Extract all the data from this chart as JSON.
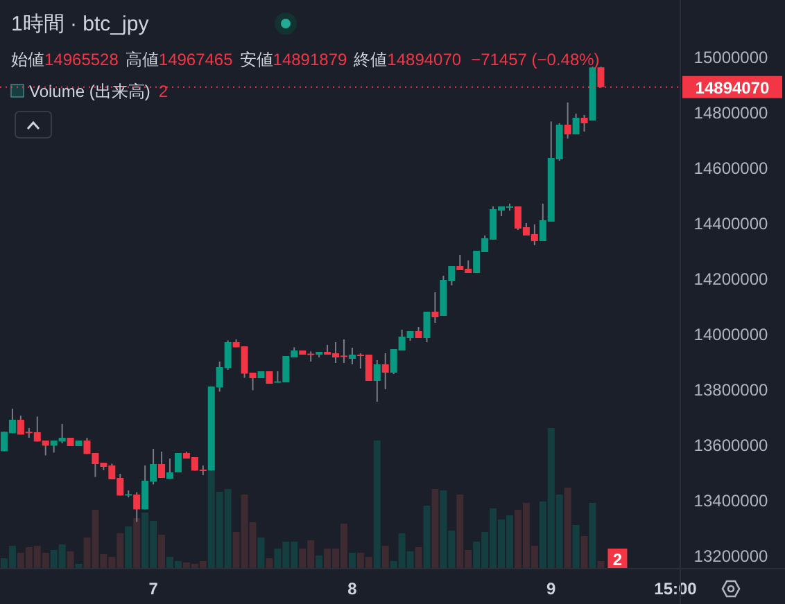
{
  "chart_data": {
    "type": "candlestick",
    "title": "1時間 · btc_jpy",
    "annotations": [
      "始値",
      "14965528",
      "高値",
      "14967465",
      "安値",
      "14891879",
      "終値",
      "14894070",
      "−71457 (−0.48%)"
    ],
    "categories": [
      null,
      null,
      null,
      null,
      null,
      null,
      null,
      null,
      null,
      null,
      null,
      null,
      null,
      null,
      null,
      null,
      null,
      null,
      "7",
      null,
      null,
      null,
      null,
      null,
      null,
      null,
      null,
      null,
      null,
      null,
      null,
      null,
      null,
      null,
      null,
      null,
      null,
      null,
      null,
      null,
      null,
      null,
      "8",
      null,
      null,
      null,
      null,
      null,
      null,
      null,
      null,
      null,
      null,
      null,
      null,
      null,
      null,
      null,
      null,
      null,
      null,
      null,
      null,
      null,
      null,
      null,
      "9",
      null,
      null,
      null,
      null,
      null,
      null,
      null,
      null,
      null,
      null,
      null,
      null,
      null,
      null,
      "15:00"
    ],
    "ohlc": [
      [
        13580000,
        13650000,
        13580000,
        13650000
      ],
      [
        13645000,
        13733500,
        13645000,
        13693500
      ],
      [
        13693500,
        13708500,
        13640000,
        13640000
      ],
      [
        13650000,
        13663500,
        13628500,
        13648500
      ],
      [
        13648500,
        13705000,
        13615000,
        13615000
      ],
      [
        13618500,
        13618500,
        13565000,
        13600000
      ],
      [
        13600000,
        13618500,
        13575000,
        13618500
      ],
      [
        13615000,
        13678500,
        13608500,
        13628500
      ],
      [
        13628500,
        13628500,
        13598500,
        13598500
      ],
      [
        13598500,
        13618500,
        13598500,
        13618500
      ],
      [
        13618500,
        13628500,
        13570000,
        13570000
      ],
      [
        13573500,
        13573500,
        13487000,
        13533500
      ],
      [
        13538500,
        13538500,
        13512000,
        13523500
      ],
      [
        13528500,
        13535000,
        13478500,
        13478500
      ],
      [
        13483500,
        13498500,
        13420000,
        13420000
      ],
      [
        13423500,
        13438500,
        13413500,
        13425000
      ],
      [
        13423500,
        13432000,
        13325000,
        13370000
      ],
      [
        13370000,
        13528500,
        13370000,
        13473500
      ],
      [
        13470000,
        13588500,
        13460000,
        13533500
      ],
      [
        13533500,
        13578500,
        13483500,
        13483500
      ],
      [
        13480000,
        13553500,
        13480000,
        13503500
      ],
      [
        13503500,
        13573500,
        13503500,
        13573500
      ],
      [
        13573500,
        13578500,
        13553500,
        13553500
      ],
      [
        13558500,
        13558500,
        13510000,
        13510000
      ],
      [
        13513500,
        13528500,
        13493500,
        13512000
      ],
      [
        13510000,
        13813500,
        13510000,
        13813500
      ],
      [
        13810000,
        13903500,
        13795000,
        13883500
      ],
      [
        13880000,
        13980000,
        13873500,
        13973500
      ],
      [
        13973500,
        13983500,
        13955000,
        13955000
      ],
      [
        13958500,
        13958500,
        13845000,
        13860000
      ],
      [
        13863500,
        13863500,
        13800000,
        13843500
      ],
      [
        13843500,
        13868500,
        13843500,
        13868500
      ],
      [
        13868500,
        13868500,
        13823500,
        13823500
      ],
      [
        13828500,
        13868500,
        13828500,
        13832000
      ],
      [
        13828500,
        13923500,
        13828500,
        13923500
      ],
      [
        13918500,
        13955000,
        13918500,
        13943500
      ],
      [
        13943500,
        13943500,
        13928500,
        13928500
      ],
      [
        13932000,
        13940000,
        13903500,
        13927000
      ],
      [
        13928500,
        13938500,
        13918500,
        13938500
      ],
      [
        13938500,
        13963500,
        13928500,
        13928500
      ],
      [
        13933500,
        13973500,
        13898500,
        13918500
      ],
      [
        13925000,
        13983500,
        13898500,
        13920000
      ],
      [
        13913500,
        13953500,
        13893500,
        13928500
      ],
      [
        13928500,
        13933500,
        13878500,
        13923500
      ],
      [
        13928500,
        13928500,
        13833500,
        13833500
      ],
      [
        13833500,
        13908500,
        13758500,
        13893500
      ],
      [
        13893500,
        13933500,
        13803500,
        13863500
      ],
      [
        13863500,
        13948500,
        13858500,
        13948500
      ],
      [
        13943500,
        14018500,
        13943500,
        13993500
      ],
      [
        13988500,
        14013500,
        13978500,
        14013500
      ],
      [
        14013500,
        14028500,
        13988500,
        13988500
      ],
      [
        13988500,
        14083500,
        13973500,
        14083500
      ],
      [
        14083500,
        14153500,
        14043500,
        14063500
      ],
      [
        14068500,
        14213500,
        14068500,
        14198500
      ],
      [
        14193500,
        14248500,
        14178500,
        14248500
      ],
      [
        14248500,
        14288500,
        14233500,
        14233500
      ],
      [
        14238500,
        14268500,
        14223500,
        14223500
      ],
      [
        14223500,
        14303500,
        14223500,
        14303500
      ],
      [
        14298500,
        14358500,
        14298500,
        14348500
      ],
      [
        14343500,
        14463500,
        14343500,
        14453500
      ],
      [
        14448500,
        14463500,
        14428500,
        14463500
      ],
      [
        14462000,
        14473500,
        14448500,
        14463500
      ],
      [
        14463500,
        14463500,
        14378500,
        14383500
      ],
      [
        14388500,
        14403500,
        14358500,
        14358500
      ],
      [
        14363500,
        14398500,
        14323500,
        14338500
      ],
      [
        14338500,
        14473500,
        14338500,
        14413500
      ],
      [
        14408500,
        14770000,
        14408500,
        14638500
      ],
      [
        14633500,
        14763500,
        14628500,
        14758500
      ],
      [
        14758500,
        14838500,
        14708500,
        14723500
      ],
      [
        14723500,
        14798500,
        14723500,
        14783500
      ],
      [
        14783500,
        14793500,
        14733500,
        14763500
      ],
      [
        14773500,
        14968000,
        14773500,
        14965000
      ],
      [
        14965528,
        14967465,
        14891879,
        14894070
      ],
      null,
      null,
      null,
      null,
      null,
      null,
      null,
      null,
      null
    ],
    "series": [
      {
        "type": "bar",
        "axis": "y2",
        "name": "Volume (出来高)",
        "values": [
          2.8,
          6.4,
          4.4,
          6,
          6.4,
          4.4,
          5.2,
          6.8,
          4.8,
          1.2,
          8.8,
          16.8,
          4,
          3.2,
          10,
          12,
          14.4,
          16,
          13.6,
          9.6,
          3.2,
          2,
          1.6,
          1.2,
          2,
          28,
          22,
          22.8,
          10.4,
          21.2,
          13.2,
          8.8,
          2.8,
          5.6,
          7.6,
          7.6,
          5.6,
          8,
          3.6,
          5.6,
          5.6,
          12.8,
          4.4,
          4.4,
          3.2,
          36.8,
          6.4,
          2,
          10,
          4.8,
          6,
          18,
          22.8,
          22.4,
          10.8,
          21.2,
          5.2,
          7.6,
          10.4,
          17.2,
          14,
          15.2,
          16.8,
          18.8,
          6.4,
          19.2,
          40.4,
          21.2,
          23.2,
          12.4,
          9.2,
          18.8,
          2,
          null,
          null,
          null,
          null,
          null,
          null,
          null,
          null,
          null
        ],
        "value_labels": [
          null,
          null,
          null,
          null,
          null,
          null,
          null,
          null,
          null,
          null,
          null,
          null,
          null,
          null,
          null,
          null,
          null,
          null,
          null,
          null,
          null,
          null,
          null,
          null,
          null,
          null,
          null,
          null,
          null,
          null,
          null,
          null,
          null,
          null,
          null,
          null,
          null,
          null,
          null,
          null,
          null,
          null,
          null,
          null,
          null,
          null,
          null,
          null,
          null,
          null,
          null,
          null,
          null,
          null,
          null,
          null,
          null,
          null,
          null,
          null,
          null,
          null,
          null,
          null,
          null,
          null,
          null,
          null,
          null,
          null,
          null,
          null,
          "2",
          null,
          null,
          null,
          null,
          null,
          null,
          null,
          null,
          null
        ],
        "colors": [
          "#153e40",
          "#153e40",
          "#3e2a31",
          "#3e2a31",
          "#3e2a31",
          "#3e2a31",
          "#153e40",
          "#153e40",
          "#3e2a31",
          "#153e40",
          "#3e2a31",
          "#3e2a31",
          "#3e2a31",
          "#3e2a31",
          "#3e2a31",
          "#153e40",
          "#3e2a31",
          "#153e40",
          "#153e40",
          "#3e2a31",
          "#153e40",
          "#153e40",
          "#3e2a31",
          "#3e2a31",
          "#3e2a31",
          "#153e40",
          "#153e40",
          "#153e40",
          "#3e2a31",
          "#3e2a31",
          "#3e2a31",
          "#153e40",
          "#3e2a31",
          "#153e40",
          "#153e40",
          "#153e40",
          "#3e2a31",
          "#3e2a31",
          "#153e40",
          "#3e2a31",
          "#3e2a31",
          "#3e2a31",
          "#153e40",
          "#3e2a31",
          "#3e2a31",
          "#153e40",
          "#3e2a31",
          "#153e40",
          "#153e40",
          "#153e40",
          "#3e2a31",
          "#153e40",
          "#3e2a31",
          "#153e40",
          "#153e40",
          "#3e2a31",
          "#3e2a31",
          "#153e40",
          "#153e40",
          "#153e40",
          "#153e40",
          "#153e40",
          "#3e2a31",
          "#3e2a31",
          "#3e2a31",
          "#153e40",
          "#153e40",
          "#153e40",
          "#3e2a31",
          "#153e40",
          "#3e2a31",
          "#153e40",
          "#3e2a31",
          null,
          null,
          null,
          null,
          null,
          null,
          null,
          null,
          null
        ]
      }
    ],
    "ylim": [
      13158500,
      15208500
    ],
    "yticks": [
      13200000,
      13400000,
      13600000,
      13800000,
      14000000,
      14200000,
      14400000,
      14600000,
      14800000,
      15000000
    ],
    "y2lim": [
      0,
      164
    ],
    "legend": "top left",
    "ref_lines": [
      {
        "axis": "y",
        "value": 14894070,
        "label": "14894070",
        "color": "#f23645",
        "line_style": "dotted"
      }
    ]
  }
}
